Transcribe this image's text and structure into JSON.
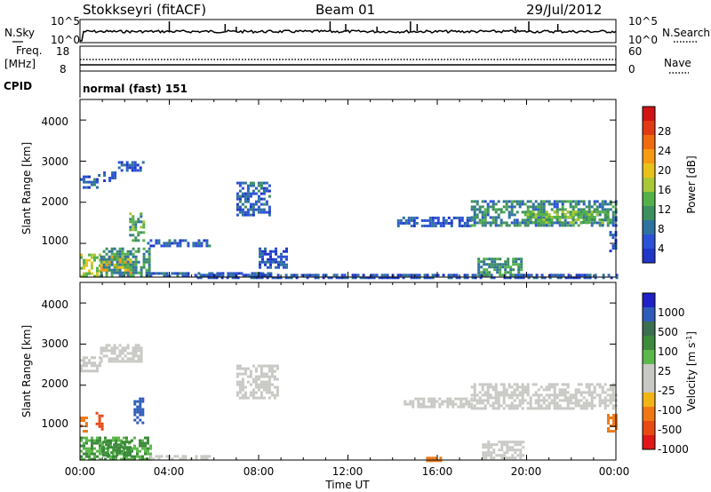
{
  "header": {
    "title": "Stokkseyri (fitACF)",
    "beam": "Beam 01",
    "date": "29/Jul/2012"
  },
  "top_panels": {
    "nsky_label": "N.Sky",
    "nsky_ticks": [
      "10^5",
      "10^0"
    ],
    "nsearch_label": "N.Search",
    "nsearch_ticks": [
      "10^5",
      "10^0"
    ],
    "freq_label": "Freq.",
    "freq_unit": "[MHz]",
    "freq_ticks": [
      "18",
      "8"
    ],
    "nave_label": "Nave",
    "nave_ticks": [
      "60",
      "0"
    ],
    "cpid_label": "CPID",
    "cpid_value": "normal (fast) 151"
  },
  "x_axis": {
    "title": "Time UT",
    "ticks": [
      "00:00",
      "04:00",
      "08:00",
      "12:00",
      "16:00",
      "20:00",
      "00:00"
    ]
  },
  "power_panel": {
    "ylabel": "Slant Range [km]",
    "yticks": [
      "4000",
      "3000",
      "2000",
      "1000"
    ],
    "cbar_label": "Power [dB]",
    "cbar_ticks": [
      "28",
      "24",
      "20",
      "16",
      "12",
      "8",
      "4"
    ]
  },
  "velocity_panel": {
    "ylabel": "Slant Range [km]",
    "yticks": [
      "4000",
      "3000",
      "2000",
      "1000"
    ],
    "cbar_label": "Velocity [m s",
    "cbar_label_sup": "-1",
    "cbar_label_end": "]",
    "cbar_ticks": [
      "1000",
      "500",
      "100",
      "25",
      "-25",
      "-100",
      "-500",
      "-1000"
    ]
  },
  "chart_data": [
    {
      "type": "heatmap",
      "title": "Stokkseyri (fitACF)",
      "xlabel": "Time UT",
      "ylabel": "Slant Range [km]",
      "xlim": [
        0,
        24
      ],
      "ylim": [
        180,
        4500
      ],
      "colorbar": {
        "label": "Power [dB]",
        "range": [
          0,
          30
        ],
        "ticks": [
          4,
          8,
          12,
          16,
          20,
          24,
          28
        ]
      },
      "regions": [
        {
          "t": [
            0.0,
            0.8
          ],
          "r": [
            2350,
            2650
          ],
          "v": 6
        },
        {
          "t": [
            0.8,
            1.6
          ],
          "r": [
            2500,
            2750
          ],
          "v": 5
        },
        {
          "t": [
            1.7,
            2.8
          ],
          "r": [
            2750,
            3000
          ],
          "v": 5
        },
        {
          "t": [
            0.0,
            0.9
          ],
          "r": [
            200,
            750
          ],
          "v": 16
        },
        {
          "t": [
            0.9,
            2.3
          ],
          "r": [
            300,
            700
          ],
          "v": 20
        },
        {
          "t": [
            0.9,
            3.1
          ],
          "r": [
            200,
            900
          ],
          "v": 10
        },
        {
          "t": [
            2.2,
            2.9
          ],
          "r": [
            1100,
            1750
          ],
          "v": 12
        },
        {
          "t": [
            3.0,
            5.8
          ],
          "r": [
            950,
            1100
          ],
          "v": 6
        },
        {
          "t": [
            3.0,
            8.5
          ],
          "r": [
            200,
            300
          ],
          "v": 6
        },
        {
          "t": [
            7.0,
            8.5
          ],
          "r": [
            1700,
            2500
          ],
          "v": 6
        },
        {
          "t": [
            8.0,
            9.2
          ],
          "r": [
            400,
            900
          ],
          "v": 5
        },
        {
          "t": [
            5.0,
            24.0
          ],
          "r": [
            180,
            260
          ],
          "v": 5
        },
        {
          "t": [
            14.2,
            17.5
          ],
          "r": [
            1450,
            1650
          ],
          "v": 5
        },
        {
          "t": [
            17.5,
            24.0
          ],
          "r": [
            1450,
            2050
          ],
          "v": 9
        },
        {
          "t": [
            20.0,
            23.8
          ],
          "r": [
            1500,
            1800
          ],
          "v": 14
        },
        {
          "t": [
            17.8,
            19.8
          ],
          "r": [
            250,
            650
          ],
          "v": 10
        },
        {
          "t": [
            23.7,
            24.0
          ],
          "r": [
            800,
            1300
          ],
          "v": 6
        }
      ]
    },
    {
      "type": "heatmap",
      "title": "",
      "xlabel": "Time UT",
      "ylabel": "Slant Range [km]",
      "xlim": [
        0,
        24
      ],
      "ylim": [
        180,
        4500
      ],
      "colorbar": {
        "label": "Velocity [m s-1]",
        "ticks": [
          1000,
          500,
          100,
          25,
          -25,
          -100,
          -500,
          -1000
        ]
      },
      "regions": [
        {
          "t": [
            0.0,
            0.9
          ],
          "r": [
            2350,
            2700
          ],
          "v": 0
        },
        {
          "t": [
            0.9,
            2.8
          ],
          "r": [
            2550,
            3000
          ],
          "v": 0
        },
        {
          "t": [
            0.0,
            3.2
          ],
          "r": [
            200,
            750
          ],
          "v": 60
        },
        {
          "t": [
            1.0,
            2.2
          ],
          "r": [
            300,
            650
          ],
          "v": 120
        },
        {
          "t": [
            0.0,
            0.3
          ],
          "r": [
            900,
            1300
          ],
          "v": -150
        },
        {
          "t": [
            0.7,
            1.0
          ],
          "r": [
            900,
            1350
          ],
          "v": -700
        },
        {
          "t": [
            2.4,
            2.8
          ],
          "r": [
            1100,
            1700
          ],
          "v": 700
        },
        {
          "t": [
            3.0,
            5.8
          ],
          "r": [
            200,
            300
          ],
          "v": 0
        },
        {
          "t": [
            7.0,
            8.8
          ],
          "r": [
            1700,
            2500
          ],
          "v": 0
        },
        {
          "t": [
            14.5,
            17.5
          ],
          "r": [
            1500,
            1700
          ],
          "v": 0
        },
        {
          "t": [
            17.5,
            24.0
          ],
          "r": [
            1450,
            2050
          ],
          "v": 0
        },
        {
          "t": [
            18.0,
            19.8
          ],
          "r": [
            250,
            650
          ],
          "v": 0
        },
        {
          "t": [
            23.6,
            24.0
          ],
          "r": [
            850,
            1300
          ],
          "v": -200
        },
        {
          "t": [
            15.5,
            16.2
          ],
          "r": [
            180,
            260
          ],
          "v": -150
        }
      ]
    }
  ]
}
